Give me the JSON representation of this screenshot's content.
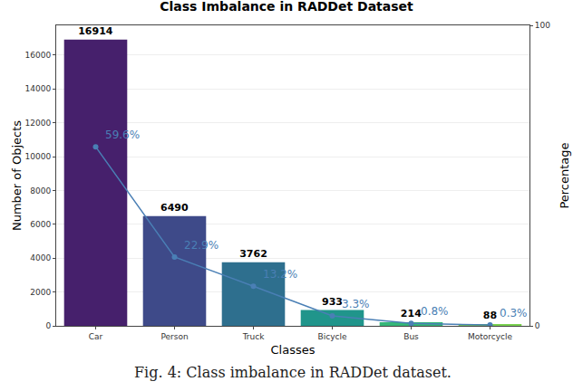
{
  "chart_data": {
    "type": "bar",
    "title": "Class Imbalance in RADDet Dataset",
    "x_label": "Classes",
    "y_label": "Number of Objects",
    "y2_label": "Percentage",
    "annotations": [
      "Fig. 4: Class imbalance in RADDet dataset."
    ],
    "categories": [
      "Car",
      "Person",
      "Truck",
      "Bicycle",
      "Bus",
      "Motorcycle"
    ],
    "series": [
      {
        "type": "bar",
        "values": [
          16914,
          6490,
          3762,
          933,
          214,
          88
        ],
        "colors": [
          "#46206c",
          "#3e4a89",
          "#2e6f8e",
          "#20958b",
          "#35b779",
          "#7ad151"
        ],
        "data_labels": true
      },
      {
        "type": "line",
        "axis": "y2",
        "values": [
          59.6,
          22.9,
          13.2,
          3.3,
          0.8,
          0.3
        ],
        "value_labels": [
          "59.6%",
          "22.9%",
          "13.2%",
          "3.3%",
          "0.8%",
          "0.3%"
        ],
        "color": "#4a7fb5",
        "marker": "circle",
        "line_style": "solid",
        "data_labels": true
      }
    ],
    "ylim": [
      0,
      17760
    ],
    "yticks": [
      0,
      2000,
      4000,
      6000,
      8000,
      10000,
      12000,
      14000,
      16000
    ],
    "y2lim": [
      0,
      100
    ],
    "y2ticks": [
      0,
      100
    ],
    "grid": true
  }
}
